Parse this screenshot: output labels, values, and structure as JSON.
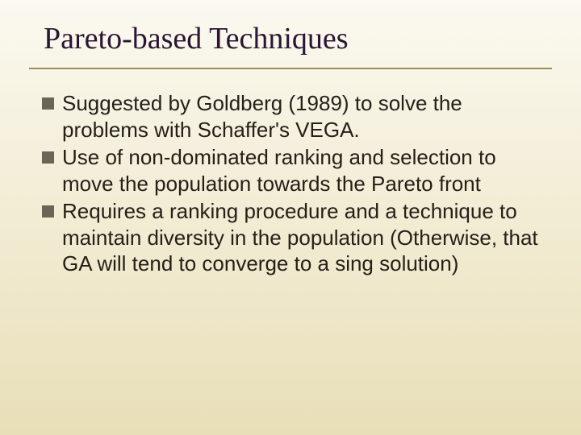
{
  "slide": {
    "title": "Pareto-based Techniques",
    "bullets": [
      "Suggested by Goldberg (1989) to solve the problems with Schaffer's VEGA.",
      "Use of non-dominated ranking and selection to move the population towards the Pareto front",
      "Requires a ranking procedure and a technique to maintain diversity in the population (Otherwise, that GA will tend to converge to a sing solution)"
    ],
    "colors": {
      "background_top": "#fbf9f0",
      "background_bottom": "#e8dfb8",
      "title_color": "#2a1633",
      "underline_color": "#9a8f5a",
      "bullet_marker_color": "#6a6657",
      "body_text_color": "#252018"
    },
    "typography": {
      "title_font": "Times New Roman",
      "title_size_pt": 38,
      "body_font": "Arial",
      "body_size_pt": 26
    }
  }
}
